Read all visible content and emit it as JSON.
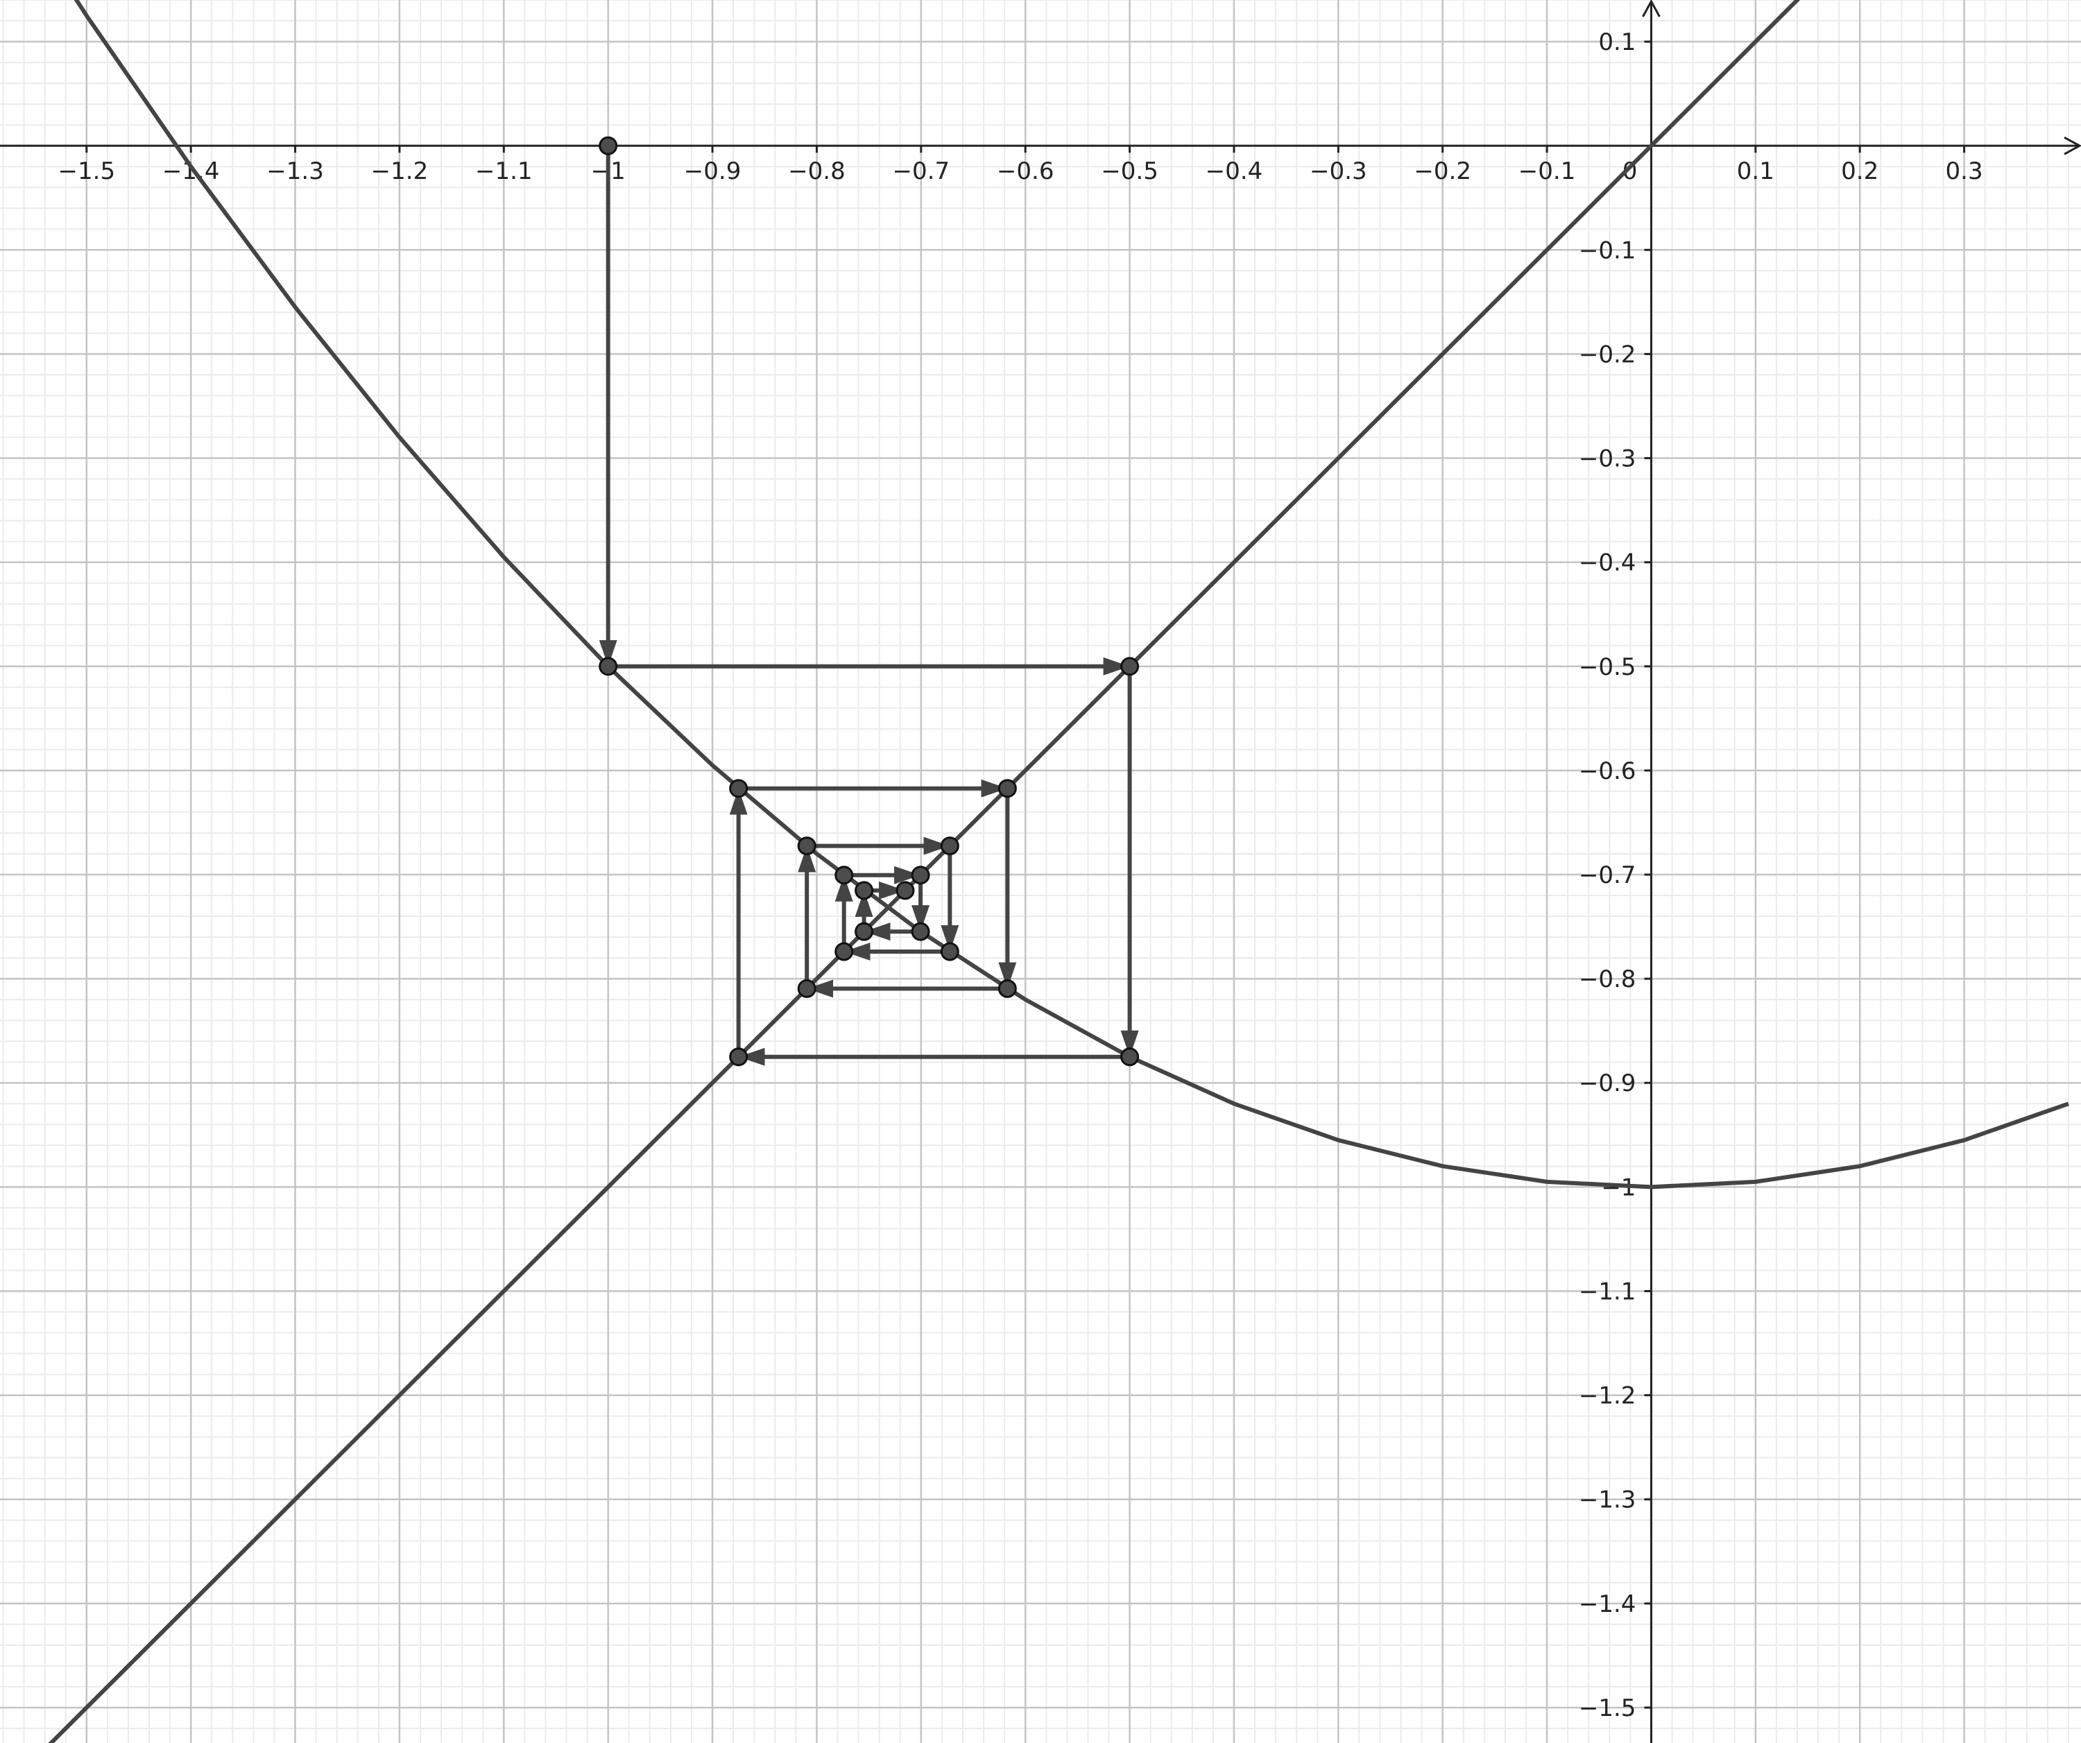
{
  "chart_data": {
    "type": "cobweb",
    "xlim": [
      -1.583,
      0.412
    ],
    "ylim": [
      -1.534,
      0.14
    ],
    "grid": true,
    "xticks": [
      {
        "value": -1.5,
        "label": "−1.5"
      },
      {
        "value": -1.4,
        "label": "−1.4"
      },
      {
        "value": -1.3,
        "label": "−1.3"
      },
      {
        "value": -1.2,
        "label": "−1.2"
      },
      {
        "value": -1.1,
        "label": "−1.1"
      },
      {
        "value": -1,
        "label": "−1"
      },
      {
        "value": -0.9,
        "label": "−0.9"
      },
      {
        "value": -0.8,
        "label": "−0.8"
      },
      {
        "value": -0.7,
        "label": "−0.7"
      },
      {
        "value": -0.6,
        "label": "−0.6"
      },
      {
        "value": -0.5,
        "label": "−0.5"
      },
      {
        "value": -0.4,
        "label": "−0.4"
      },
      {
        "value": -0.3,
        "label": "−0.3"
      },
      {
        "value": -0.2,
        "label": "−0.2"
      },
      {
        "value": -0.1,
        "label": "−0.1"
      },
      0,
      0.1,
      0.2,
      0.3
    ],
    "yticks": [
      0.1,
      {
        "value": -0.1,
        "label": "−0.1"
      },
      {
        "value": -0.2,
        "label": "−0.2"
      },
      {
        "value": -0.3,
        "label": "−0.3"
      },
      {
        "value": -0.4,
        "label": "−0.4"
      },
      {
        "value": -0.5,
        "label": "−0.5"
      },
      {
        "value": -0.6,
        "label": "−0.6"
      },
      {
        "value": -0.7,
        "label": "−0.7"
      },
      {
        "value": -0.8,
        "label": "−0.8"
      },
      {
        "value": -0.9,
        "label": "−0.9"
      },
      {
        "value": -1,
        "label": "−1"
      },
      {
        "value": -1.1,
        "label": "−1.1"
      },
      {
        "value": -1.2,
        "label": "−1.2"
      },
      {
        "value": -1.3,
        "label": "−1.3"
      },
      {
        "value": -1.4,
        "label": "−1.4"
      },
      {
        "value": -1.5,
        "label": "−1.5"
      }
    ],
    "series": [
      {
        "color": "#444444",
        "x": [
          -1.6,
          -1.5,
          -1.4,
          -1.3,
          -1.2,
          -1.1,
          -1,
          -0.9,
          -0.8,
          -0.7,
          -0.6,
          -0.5,
          -0.4,
          -0.3,
          -0.2,
          -0.1,
          0,
          0.1,
          0.2,
          0.3,
          0.4
        ],
        "values": [
          0.28,
          0.125,
          -0.02,
          -0.155,
          -0.28,
          -0.395,
          -0.5,
          -0.595,
          -0.68,
          -0.755,
          -0.82,
          -0.875,
          -0.92,
          -0.955,
          -0.98,
          -0.995,
          -1,
          -0.995,
          -0.98,
          -0.955,
          -0.92
        ]
      },
      {
        "color": "#444444",
        "x": [
          -1.6,
          0.2
        ],
        "values": [
          -1.6,
          0.2
        ]
      }
    ],
    "cobweb": {
      "color": "#444444",
      "x": [
        -1,
        -1,
        -0.5,
        -0.5,
        -0.875,
        -0.875,
        -0.6172,
        -0.6172,
        -0.8095,
        -0.8095,
        -0.6724,
        -0.6724,
        -0.7739,
        -0.7739,
        -0.7005,
        -0.7005,
        -0.7547,
        -0.7547,
        -0.7152
      ],
      "values": [
        0,
        -0.5,
        -0.5,
        -0.875,
        -0.875,
        -0.6172,
        -0.6172,
        -0.8095,
        -0.8095,
        -0.6724,
        -0.6724,
        -0.7739,
        -0.7739,
        -0.7005,
        -0.7005,
        -0.7547,
        -0.7547,
        -0.7152,
        -0.7152
      ]
    }
  }
}
